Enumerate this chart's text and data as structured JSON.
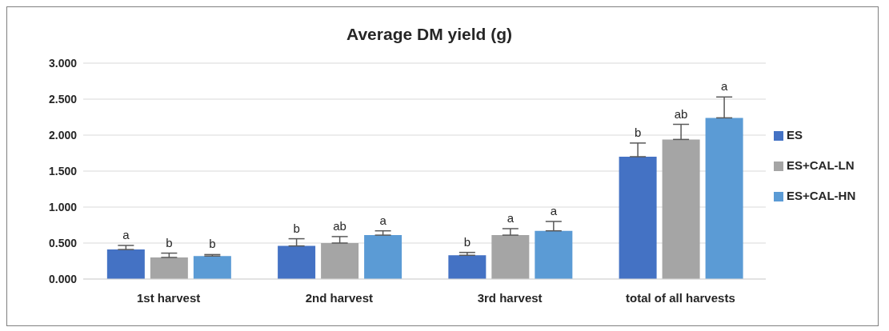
{
  "chart_data": {
    "type": "bar",
    "title": "Average DM yield (g)",
    "categories": [
      "1st harvest",
      "2nd harvest",
      "3rd harvest",
      "total of all harvests"
    ],
    "series": [
      {
        "name": "ES",
        "color": "#4472c4",
        "values": [
          0.41,
          0.46,
          0.33,
          1.7
        ],
        "errors": [
          [
            0.41,
            0.467
          ],
          [
            0.46,
            0.56
          ],
          [
            0.33,
            0.37
          ],
          [
            1.7,
            1.89
          ]
        ],
        "value_labels": [
          "a",
          "b",
          "b",
          "b"
        ]
      },
      {
        "name": "ES+CAL-LN",
        "color": "#a5a5a5",
        "values": [
          0.3,
          0.5,
          0.61,
          1.94
        ],
        "errors": [
          [
            0.3,
            0.36
          ],
          [
            0.5,
            0.59
          ],
          [
            0.61,
            0.7
          ],
          [
            1.94,
            2.15
          ]
        ],
        "value_labels": [
          "b",
          "ab",
          "a",
          "ab"
        ]
      },
      {
        "name": "ES+CAL-HN",
        "color": "#5b9bd5",
        "values": [
          0.32,
          0.61,
          0.67,
          2.24
        ],
        "errors": [
          [
            0.32,
            0.34
          ],
          [
            0.61,
            0.67
          ],
          [
            0.67,
            0.8
          ],
          [
            2.24,
            2.53
          ]
        ],
        "value_labels": [
          "b",
          "a",
          "a",
          "a"
        ]
      }
    ],
    "ylim": [
      0,
      3
    ],
    "yticks": [
      {
        "value": 0,
        "label": "0.000"
      },
      {
        "value": 0.5,
        "label": "0.500"
      },
      {
        "value": 1,
        "label": "1.000"
      },
      {
        "value": 1.5,
        "label": "1.500"
      },
      {
        "value": 2,
        "label": "2.000"
      },
      {
        "value": 2.5,
        "label": "2.500"
      },
      {
        "value": 3,
        "label": "3.000"
      }
    ],
    "grid": "y",
    "legend": "right"
  }
}
